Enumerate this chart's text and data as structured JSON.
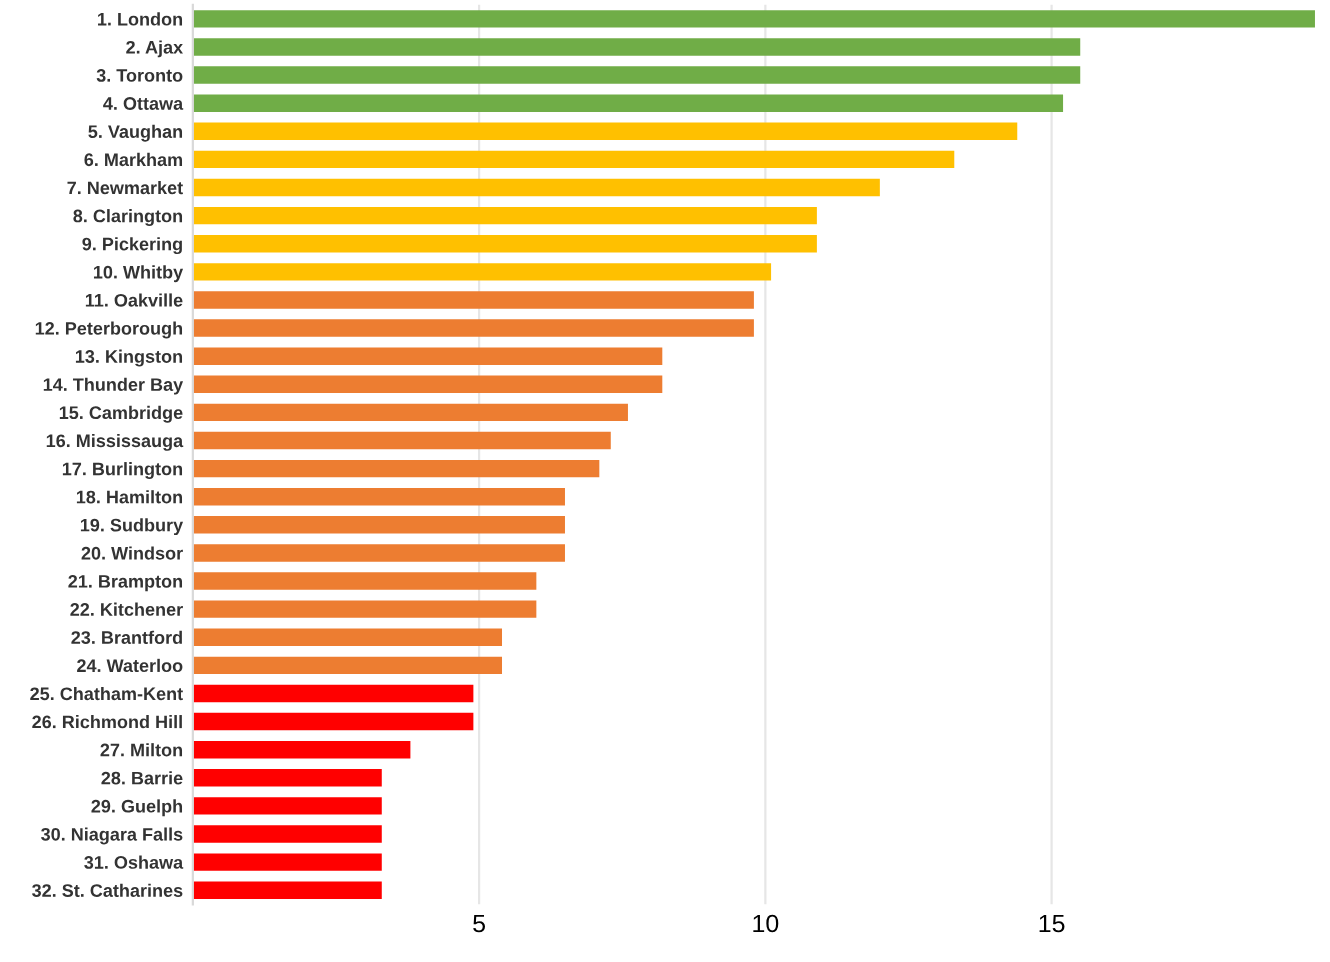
{
  "chart_data": {
    "type": "bar",
    "orientation": "horizontal",
    "categories": [
      "1. London",
      "2. Ajax",
      "3. Toronto",
      "4. Ottawa",
      "5. Vaughan",
      "6. Markham",
      "7. Newmarket",
      "8. Clarington",
      "9. Pickering",
      "10. Whitby",
      "11. Oakville",
      "12. Peterborough",
      "13. Kingston",
      "14. Thunder Bay",
      "15. Cambridge",
      "16. Mississauga",
      "17. Burlington",
      "18. Hamilton",
      "19. Sudbury",
      "20. Windsor",
      "21. Brampton",
      "22. Kitchener",
      "23. Brantford",
      "24. Waterloo",
      "25. Chatham-Kent",
      "26. Richmond Hill",
      "27. Milton",
      "28. Barrie",
      "29. Guelph",
      "30. Niagara Falls",
      "31. Oshawa",
      "32. St. Catharines"
    ],
    "values": [
      19.6,
      15.5,
      15.5,
      15.2,
      14.4,
      13.3,
      12.0,
      10.9,
      10.9,
      10.1,
      9.8,
      9.8,
      8.2,
      8.2,
      7.6,
      7.3,
      7.1,
      6.5,
      6.5,
      6.5,
      6.0,
      6.0,
      5.4,
      5.4,
      4.9,
      4.9,
      3.8,
      3.3,
      3.3,
      3.3,
      3.3,
      3.3
    ],
    "colors": [
      "#70ad47",
      "#70ad47",
      "#70ad47",
      "#70ad47",
      "#ffc000",
      "#ffc000",
      "#ffc000",
      "#ffc000",
      "#ffc000",
      "#ffc000",
      "#ed7d31",
      "#ed7d31",
      "#ed7d31",
      "#ed7d31",
      "#ed7d31",
      "#ed7d31",
      "#ed7d31",
      "#ed7d31",
      "#ed7d31",
      "#ed7d31",
      "#ed7d31",
      "#ed7d31",
      "#ed7d31",
      "#ed7d31",
      "#ff0000",
      "#ff0000",
      "#ff0000",
      "#ff0000",
      "#ff0000",
      "#ff0000",
      "#ff0000",
      "#ff0000"
    ],
    "xlim": [
      0,
      19.7
    ],
    "xticks": [
      5,
      10,
      15
    ],
    "grid": "x"
  }
}
